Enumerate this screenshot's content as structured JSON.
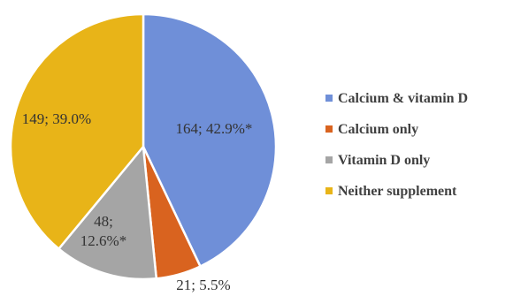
{
  "chart_data": {
    "type": "pie",
    "title": "",
    "legend_placement": "right",
    "start_angle_deg": 0,
    "direction": "clockwise",
    "slices": [
      {
        "name": "Calcium & vitamin D",
        "count": 164,
        "percent": 42.9,
        "label": "164; 42.9%*",
        "color": "#6f8fd8"
      },
      {
        "name": "Calcium only",
        "count": 21,
        "percent": 5.5,
        "label": "21; 5.5%",
        "color": "#d9631f"
      },
      {
        "name": "Vitamin D only",
        "count": 48,
        "percent": 12.6,
        "label": [
          "48;",
          "12.6%*"
        ],
        "color": "#a5a5a5"
      },
      {
        "name": "Neither supplement",
        "count": 149,
        "percent": 39.0,
        "label": "149; 39.0%",
        "color": "#e8b418"
      }
    ]
  }
}
